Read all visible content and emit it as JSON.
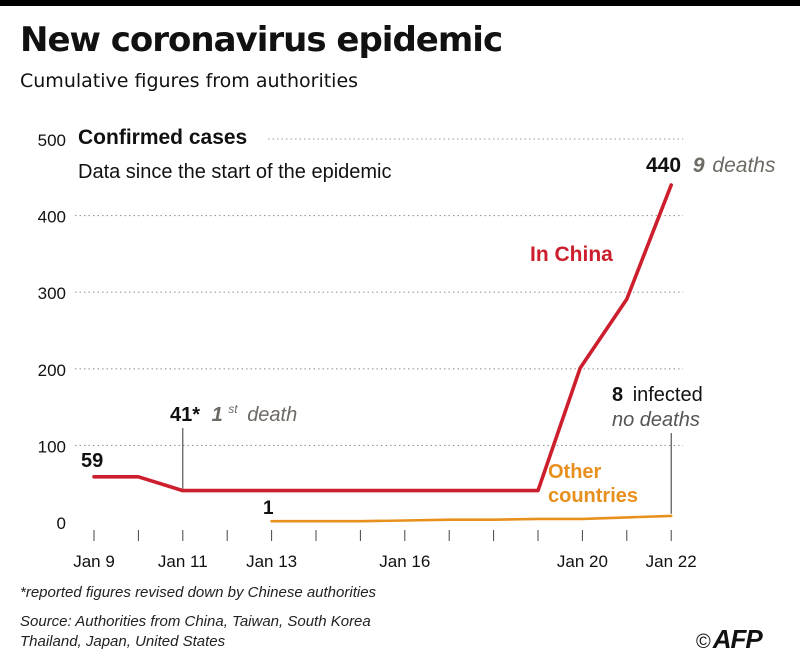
{
  "header": {
    "title": "New coronavirus epidemic",
    "subtitle": "Cumulative figures from authorities"
  },
  "chart_data": {
    "type": "line",
    "title": "Confirmed cases",
    "subtitle": "Data since the start of the epidemic",
    "xlabel": "",
    "ylabel": "",
    "ylim": [
      0,
      500
    ],
    "yticks": [
      0,
      100,
      200,
      300,
      400,
      500
    ],
    "x_categories": [
      "Jan 9",
      "Jan 10",
      "Jan 11",
      "Jan 12",
      "Jan 13",
      "Jan 14",
      "Jan 15",
      "Jan 16",
      "Jan 17",
      "Jan 18",
      "Jan 19",
      "Jan 20",
      "Jan 21",
      "Jan 22"
    ],
    "x_tick_labels": [
      {
        "index": 0,
        "label": "Jan 9"
      },
      {
        "index": 2,
        "label": "Jan 11"
      },
      {
        "index": 4,
        "label": "Jan 13"
      },
      {
        "index": 7,
        "label": "Jan 16"
      },
      {
        "index": 11,
        "label": "Jan 20"
      },
      {
        "index": 13,
        "label": "Jan 22"
      }
    ],
    "grid": true,
    "series": [
      {
        "name": "In China",
        "color": "#cc1e2c",
        "points": [
          [
            0,
            59
          ],
          [
            1,
            59
          ],
          [
            2,
            41
          ],
          [
            3,
            41
          ],
          [
            4,
            41
          ],
          [
            5,
            41
          ],
          [
            6,
            41
          ],
          [
            7,
            41
          ],
          [
            8,
            41
          ],
          [
            9,
            41
          ],
          [
            10,
            41
          ],
          [
            10.95,
            201
          ],
          [
            12,
            291
          ],
          [
            13,
            440
          ]
        ]
      },
      {
        "name": "Other countries",
        "color": "#e8901e",
        "points": [
          [
            4,
            1
          ],
          [
            5,
            1
          ],
          [
            6,
            1
          ],
          [
            7,
            2
          ],
          [
            8,
            3
          ],
          [
            9,
            3
          ],
          [
            10,
            4
          ],
          [
            11,
            4
          ],
          [
            12,
            6
          ],
          [
            13,
            8
          ]
        ]
      }
    ],
    "annotations": {
      "start_value": "59",
      "first_death_value": "41*",
      "first_death_sup_num": "1",
      "first_death_sup": "st",
      "first_death_text": "death",
      "other_start_value": "1",
      "china_end_value": "440",
      "china_deaths_num": "9",
      "china_deaths_text": "deaths",
      "other_end_num": "8",
      "other_end_text": "infected",
      "other_end_deaths": "no deaths"
    }
  },
  "footer": {
    "footnote": "*reported figures revised down by Chinese authorities",
    "source_line1": "Source: Authorities from China, Taiwan, South Korea",
    "source_line2": "Thailand, Japan, United States",
    "credit_symbol": "©",
    "credit": "AFP"
  }
}
